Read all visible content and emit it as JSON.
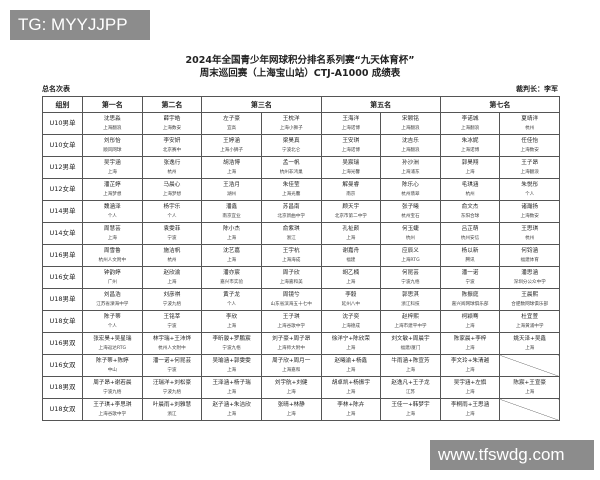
{
  "watermark_top": "TG: MYYJJPP",
  "watermark_bottom": "www.tfswdg.com",
  "header": {
    "title_line1": "2024年全国青少年网球积分排名系列赛“九天体育杯”",
    "title_line2": "周末巡回赛（上海宝山站）CTJ-A1000 成绩表",
    "left_label": "总名次表",
    "referee": "裁判长：李军"
  },
  "table": {
    "columns": [
      "组别",
      "第一名",
      "第二名",
      "第三名",
      "第五名",
      "第七名"
    ],
    "rows": [
      {
        "group": "U10男单",
        "cells": [
          [
            "沈思淼",
            "上海翻浪"
          ],
          [
            "薛宇皓",
            "上海数安"
          ],
          [
            "左子豪",
            "宜高"
          ],
          [
            "王枕洋",
            "上海小狮子"
          ],
          [
            "王海洋",
            "上海诺博"
          ],
          [
            "宋颢铭",
            "上海翻浪"
          ],
          [
            "李诺城",
            "上海翻浪"
          ],
          [
            "夏靖洋",
            "杭州"
          ]
        ]
      },
      {
        "group": "U10女单",
        "cells": [
          [
            "刘彤怡",
            "顺风网球"
          ],
          [
            "李安妍",
            "北京赛中"
          ],
          [
            "王婷涵",
            "上海小狮子"
          ],
          [
            "梁昊真",
            "宁波北仑"
          ],
          [
            "王安琪",
            "上海诺博"
          ],
          [
            "沈吉乐",
            "上海翻浪"
          ],
          [
            "朱冰妮",
            "上海诺博"
          ],
          [
            "任佳怡",
            "上海数安"
          ]
        ]
      },
      {
        "group": "U12男单",
        "cells": [
          [
            "吴宇涵",
            "上海"
          ],
          [
            "张逸行",
            "杭州"
          ],
          [
            "胡浩博",
            "上海"
          ],
          [
            "孟一帆",
            "杭州非鸿巢"
          ],
          [
            "吴宸瑞",
            "上海光馨"
          ],
          [
            "孙沙洲",
            "上海浦东"
          ],
          [
            "郭昊翔",
            "上海"
          ],
          [
            "王子昂",
            "上海翻浪"
          ]
        ]
      },
      {
        "group": "U12女单",
        "cells": [
          [
            "潘芷婷",
            "上海梦想"
          ],
          [
            "马晨心",
            "上海梦想"
          ],
          [
            "王浩月",
            "湖州"
          ],
          [
            "朱佳莹",
            "上海光馨"
          ],
          [
            "解曼睿",
            "南京"
          ],
          [
            "陈乐心",
            "杭州翡翠"
          ],
          [
            "毛琪涵",
            "杭州"
          ],
          [
            "朱悦彤",
            "个人"
          ]
        ]
      },
      {
        "group": "U14男单",
        "cells": [
          [
            "魏涵泽",
            "个人"
          ],
          [
            "杨宇乐",
            "个人"
          ],
          [
            "潘鑫",
            "南京宜业"
          ],
          [
            "苏昌南",
            "北京新曲中学"
          ],
          [
            "顾天宇",
            "北京市第二中学"
          ],
          [
            "张子曦",
            "杭州宝石"
          ],
          [
            "俞文杰",
            "东阳合球"
          ],
          [
            "诸瀚扬",
            "上海数安"
          ]
        ]
      },
      {
        "group": "U14女单",
        "cells": [
          [
            "周慧芸",
            "上海"
          ],
          [
            "袁雯菲",
            "宁波"
          ],
          [
            "陈小杰",
            "上海"
          ],
          [
            "俞紫琪",
            "浙江"
          ],
          [
            "孔祉颜",
            "上海"
          ],
          [
            "何玉婕",
            "杭州"
          ],
          [
            "吕芷萌",
            "杭州安信"
          ],
          [
            "王思琪",
            "杭州"
          ]
        ]
      },
      {
        "group": "U16男单",
        "cells": [
          [
            "周雪鲁",
            "杭州人文附中"
          ],
          [
            "施洁帆",
            "杭州"
          ],
          [
            "沈艺嘉",
            "上海"
          ],
          [
            "王宇杭",
            "上海海成"
          ],
          [
            "谢嘉舟",
            "福建"
          ],
          [
            "应辰义",
            "上海RTG"
          ],
          [
            "杨以新",
            "腾讯"
          ],
          [
            "何钧涵",
            "福建体育"
          ]
        ]
      },
      {
        "group": "U16女单",
        "cells": [
          [
            "钟韵婷",
            "广州"
          ],
          [
            "赵欣渝",
            "上海"
          ],
          [
            "潘亦宸",
            "嘉兴市实验"
          ],
          [
            "周子欣",
            "上海嘉和美"
          ],
          [
            "胡乙楠",
            "上海"
          ],
          [
            "何昆芸",
            "宁波九梧"
          ],
          [
            "潘一诺",
            "宁波"
          ],
          [
            "潘思涵",
            "深圳分公众中学"
          ]
        ]
      },
      {
        "group": "U18男单",
        "cells": [
          [
            "刘昌浩",
            "江苏省溧海中学"
          ],
          [
            "刘彦祺",
            "宁波九梧"
          ],
          [
            "黄子龙",
            "个人"
          ],
          [
            "周镜兮",
            "山东省滨海五十七中"
          ],
          [
            "李毅",
            "延州八中"
          ],
          [
            "郭思淇",
            "浙江科技"
          ],
          [
            "陈振庭",
            "嘉兴阅网球俱乐部"
          ],
          [
            "王晨熙",
            "合肥数网球俱乐部"
          ]
        ]
      },
      {
        "group": "U18女单",
        "cells": [
          [
            "陈子蒂",
            "个人"
          ],
          [
            "王铭莘",
            "宁波"
          ],
          [
            "李欣",
            "上海"
          ],
          [
            "王子琪",
            "上海谷歌中学"
          ],
          [
            "沈子奕",
            "上海德成"
          ],
          [
            "赵梓熙",
            "上海市建平中学"
          ],
          [
            "柯颖骞",
            "上海"
          ],
          [
            "杜宜萱",
            "上海黄浦中学"
          ]
        ]
      },
      {
        "group": "U16男双",
        "cells": [
          [
            "张宏昊+吴星瑞",
            "上海返达RTG"
          ],
          [
            "林宇瑞+王沛烨",
            "杭州人文附中"
          ],
          [
            "李昕骏+罗鹏宸",
            "宁波九梧"
          ],
          [
            "刘子豪+周子昂",
            "上海师大附中"
          ],
          [
            "徐洋宁+陈欣荣",
            "上海"
          ],
          [
            "刘文敏+周晨宇",
            "福建/厦门"
          ],
          [
            "陈家晨+李梓",
            "上海"
          ],
          [
            "姚天泽+吴鑫",
            "上海"
          ]
        ]
      },
      {
        "group": "U16女双",
        "cells": [
          [
            "陈子蒂+陈婷",
            "中山"
          ],
          [
            "潘一诺+何昆芸",
            "宁波"
          ],
          [
            "吴瑜涵+郭雯雯",
            "上海"
          ],
          [
            "周子欣+周月一",
            "上海嘉和"
          ],
          [
            "赵曦渝+杨鑫",
            "上海"
          ],
          [
            "牛雨涵+陈宣芳",
            "上海"
          ],
          [
            "李文玲+朱清越",
            "上海"
          ]
        ]
      },
      {
        "group": "U18男双",
        "cells": [
          [
            "周子昂+谢若晨",
            "宁波九梧"
          ],
          [
            "汪瑞洋+刘松豪",
            "宁波九梧"
          ],
          [
            "王泽涵+杨子瑞",
            "上海"
          ],
          [
            "刘宇航+刘健",
            "上海"
          ],
          [
            "胡卓凯+杨振宇",
            "上海"
          ],
          [
            "赵逸凡+王子龙",
            "江苏"
          ],
          [
            "吴宇涵+左旗",
            "上海"
          ],
          [
            "陈宸+王宣豪",
            "上海"
          ]
        ]
      },
      {
        "group": "U18女双",
        "cells": [
          [
            "王子琪+李思琪",
            "上海谷歌中学"
          ],
          [
            "叶晨雨+刘雅慧",
            "浙江"
          ],
          [
            "赵子涵+朱洁欣",
            "上海"
          ],
          [
            "张晴+林静",
            "上海"
          ],
          [
            "李林+陈卉",
            "上海"
          ],
          [
            "王佳一+韩梦宇",
            "上海"
          ],
          [
            "李桐雨+王思涵",
            "上海"
          ]
        ]
      }
    ]
  }
}
